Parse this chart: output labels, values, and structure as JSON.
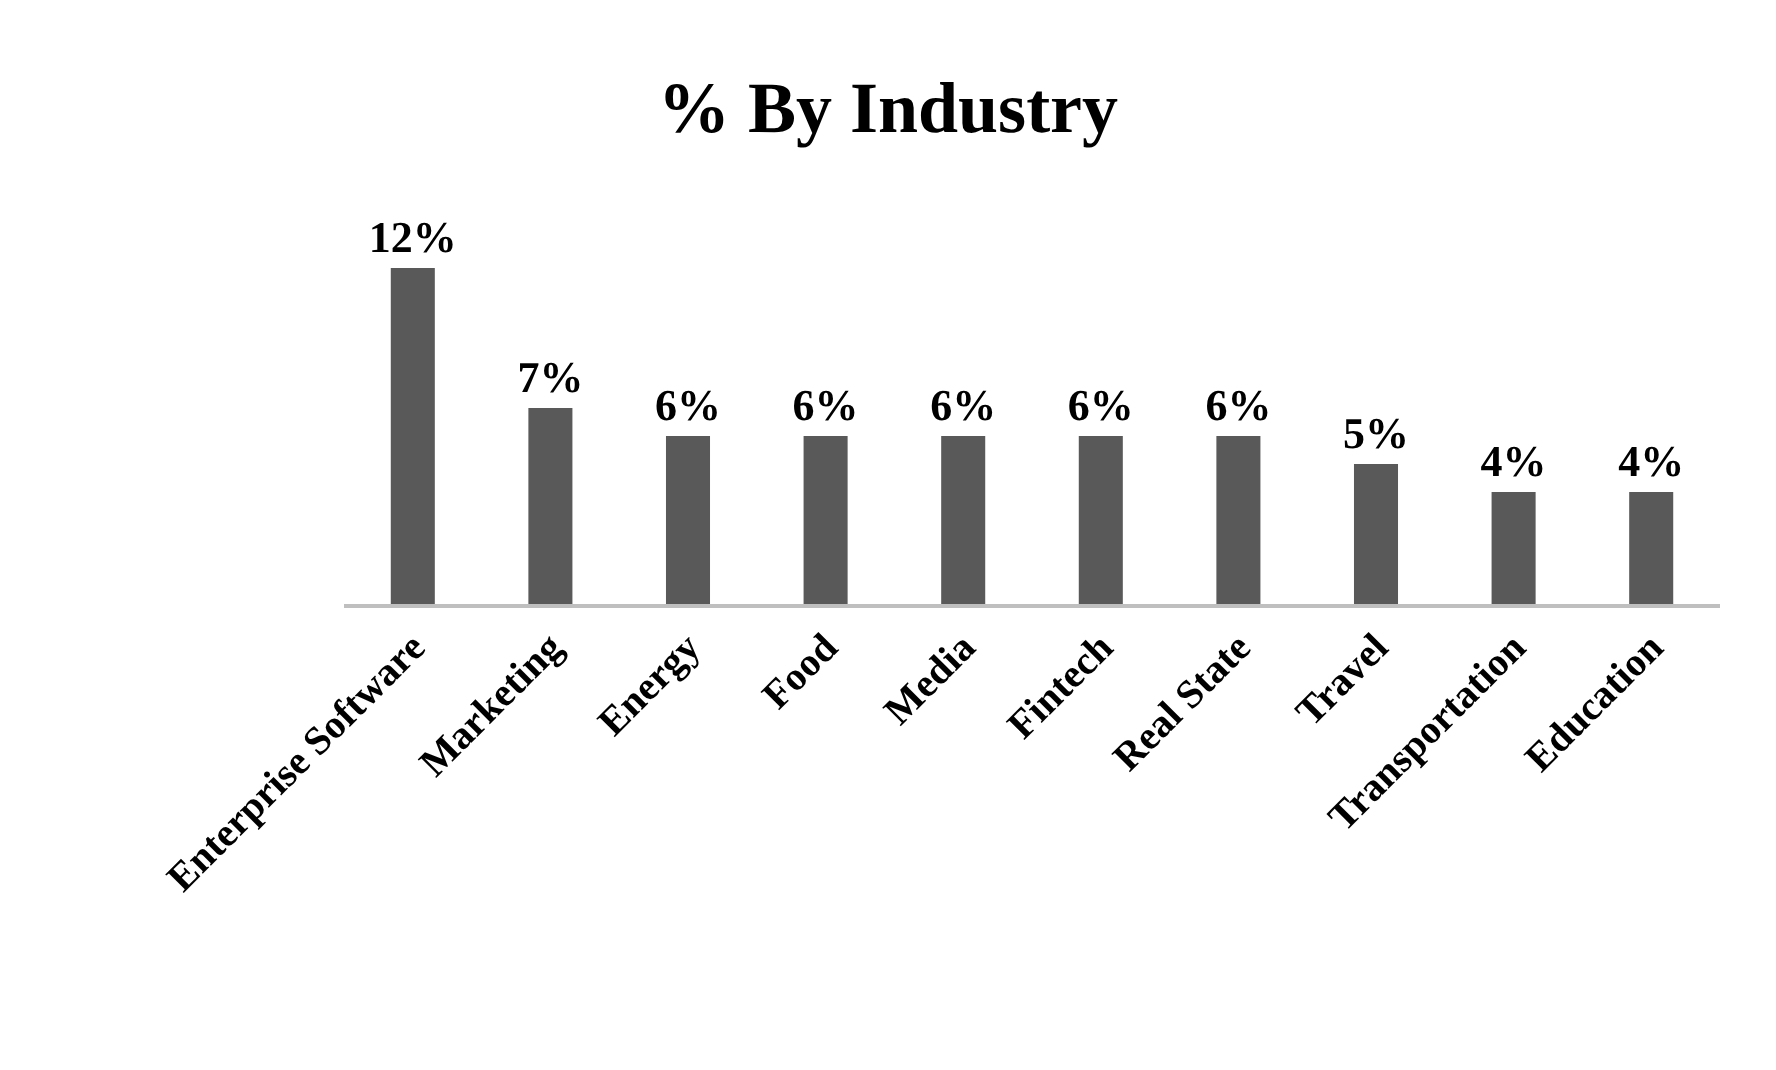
{
  "chart_data": {
    "type": "bar",
    "title": "% By Industry",
    "categories": [
      "Enterprise Software",
      "Marketing",
      "Energy",
      "Food",
      "Media",
      "Fintech",
      "Real State",
      "Travel",
      "Transportation",
      "Education"
    ],
    "values": [
      12,
      7,
      6,
      6,
      6,
      6,
      6,
      5,
      4,
      4
    ],
    "value_labels": [
      "12%",
      "7%",
      "6%",
      "6%",
      "6%",
      "6%",
      "6%",
      "5%",
      "4%",
      "4%"
    ],
    "color": "#595959",
    "legend": false
  }
}
